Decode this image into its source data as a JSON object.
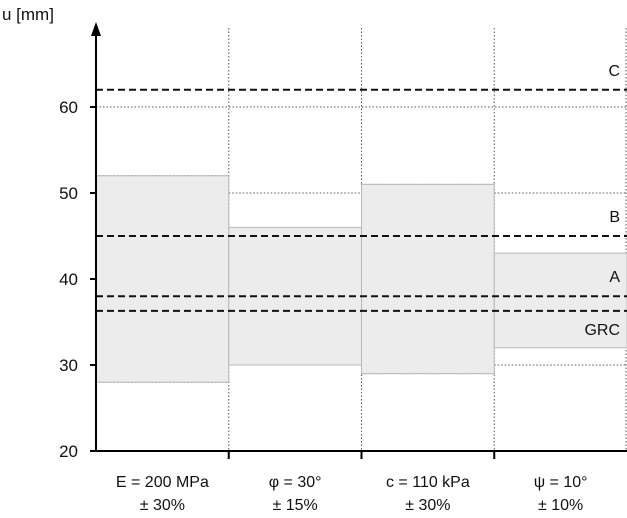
{
  "chart_data": {
    "type": "bar",
    "title": "",
    "ylabel": "u [mm]",
    "xlabel": "",
    "ylim": [
      20,
      68
    ],
    "y_ticks": [
      20,
      30,
      40,
      50,
      60
    ],
    "categories": [
      {
        "line1": "E = 200 MPa",
        "line2": "± 30%"
      },
      {
        "line1": "φ = 30°",
        "line2": "± 15%"
      },
      {
        "line1": "c = 110 kPa",
        "line2": "± 30%"
      },
      {
        "line1": "ψ = 10°",
        "line2": "± 10%"
      }
    ],
    "ranges": [
      {
        "low": 28,
        "high": 52
      },
      {
        "low": 30,
        "high": 46
      },
      {
        "low": 29,
        "high": 51
      },
      {
        "low": 32,
        "high": 43
      }
    ],
    "dotted_ranges": [
      {
        "low": 28,
        "high": 52
      },
      {
        "low": 30,
        "high": 50
      },
      {
        "low": 29,
        "high": 51
      },
      {
        "low": 30,
        "high": 50
      }
    ],
    "reference_lines": [
      {
        "label": "C",
        "value": 62
      },
      {
        "label": "B",
        "value": 45
      },
      {
        "label": "A",
        "value": 38
      },
      {
        "label": "GRC",
        "value": 36.3
      }
    ],
    "grid": "vertical separators and y=60 dotted",
    "colors": {
      "band_fill": "#ececec",
      "band_stroke": "#b8b8b8",
      "axis": "#000000",
      "dashed": "#111111",
      "dotted": "#555555"
    }
  }
}
